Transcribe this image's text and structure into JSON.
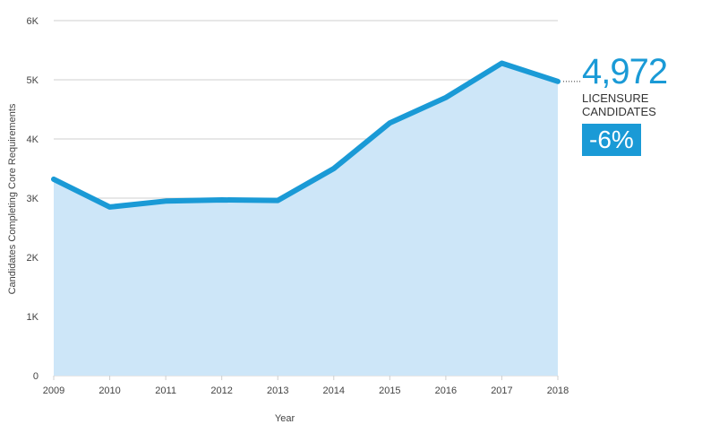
{
  "chart_data": {
    "type": "area",
    "x": [
      "2009",
      "2010",
      "2011",
      "2012",
      "2013",
      "2014",
      "2015",
      "2016",
      "2017",
      "2018"
    ],
    "values": [
      3320,
      2850,
      2950,
      2970,
      2960,
      3500,
      4270,
      4700,
      5280,
      4972
    ],
    "ylim": [
      0,
      6000
    ],
    "yticks": [
      0,
      1000,
      2000,
      3000,
      4000,
      5000,
      6000
    ],
    "ytick_labels": [
      "0",
      "1K",
      "2K",
      "3K",
      "4K",
      "5K",
      "6K"
    ],
    "xlabel": "Year",
    "ylabel": "Candidates Completing Core Requirements",
    "grid": true,
    "colors": {
      "line": "#1a9ad6",
      "fill": "#cde6f8",
      "grid": "#cfcfcf"
    }
  },
  "callout": {
    "value": "4,972",
    "label": "LICENSURE CANDIDATES",
    "change": "-6%"
  }
}
